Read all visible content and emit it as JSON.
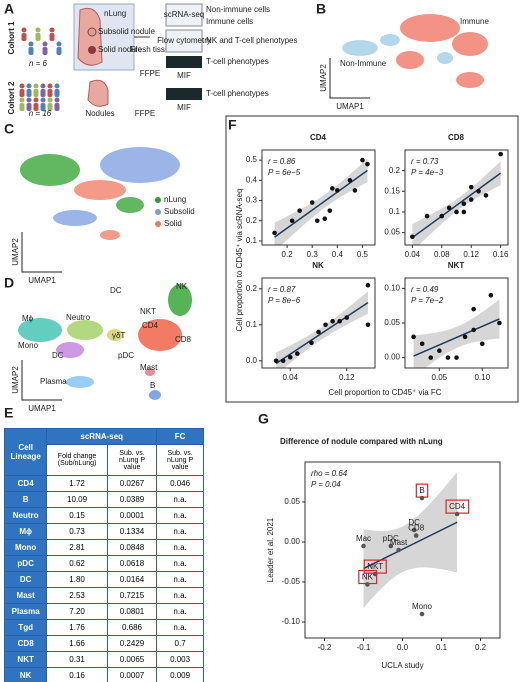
{
  "panels": {
    "A": {
      "letter": "A",
      "cohort1": "Cohort 1",
      "n1": "n = 6",
      "nlung": "nLung",
      "subsolid": "Subsolid nodule",
      "solid": "Solid nodule",
      "fresh": "Fresh tissue",
      "scrna": "scRNA-seq",
      "flow": "Flow cytometry",
      "nonimmune": "Non-immune cells",
      "immune": "Immune cells",
      "nkt_pheno": "NK and T-cell phenotypes",
      "ffpe1": "FFPE",
      "mif1": "MIF",
      "tcell1": "T-cell phenotypes",
      "cohort2": "Cohort 2",
      "n2": "n = 16",
      "nodules": "Nodules",
      "ffpe2": "FFPE",
      "mif2": "MIF",
      "tcell2": "T-cell phenotypes"
    },
    "B": {
      "letter": "B",
      "umap2": "UMAP2",
      "umap1": "UMAP1",
      "immune": "Immune",
      "nonimmune": "Non-Immune"
    },
    "C": {
      "letter": "C",
      "umap2": "UMAP2",
      "umap1": "UMAP1",
      "legend": [
        {
          "name": "nLung",
          "color": "#2ca02c"
        },
        {
          "name": "Subsolid",
          "color": "#7b9be0"
        },
        {
          "name": "Solid",
          "color": "#f07860"
        }
      ]
    },
    "D": {
      "letter": "D",
      "umap2": "UMAP2",
      "umap1": "UMAP1",
      "labels": [
        "DC",
        "NK",
        "Mϕ",
        "Neutro",
        "NKT",
        "CD4",
        "CD8",
        "γδT",
        "Mono",
        "DC",
        "pDC",
        "Mast",
        "Plasma",
        "B"
      ]
    },
    "E": {
      "letter": "E"
    },
    "F": {
      "letter": "F",
      "ylabel": "Cell proportion to CD45⁺ via scRNA-seq",
      "xlabel": "Cell proportion to CD45⁺ via FC"
    },
    "G": {
      "letter": "G"
    }
  },
  "table": {
    "header": [
      "Cell Lineage",
      "scRNA-seq",
      "FC"
    ],
    "subheader": [
      "Fold change (Sub/nLung)",
      "Sub. vs. nLung P value",
      "Sub. vs. nLung P value"
    ],
    "rows": [
      [
        "CD4",
        "1.72",
        "0.0267",
        "0.046"
      ],
      [
        "B",
        "10.09",
        "0.0389",
        "n.a."
      ],
      [
        "Neutro",
        "0.15",
        "0.0001",
        "n.a."
      ],
      [
        "Mϕ",
        "0.73",
        "0.1334",
        "n.a."
      ],
      [
        "Mono",
        "2.81",
        "0.0848",
        "n.a."
      ],
      [
        "pDC",
        "0.62",
        "0.0618",
        "n.a."
      ],
      [
        "DC",
        "1.80",
        "0.0164",
        "n.a."
      ],
      [
        "Mast",
        "2.53",
        "0.7215",
        "n.a."
      ],
      [
        "Plasma",
        "7.20",
        "0.0801",
        "n.a."
      ],
      [
        "Tgd",
        "1.76",
        "0.686",
        "n.a."
      ],
      [
        "CD8",
        "1.66",
        "0.2429",
        "0.7"
      ],
      [
        "NKT",
        "0.31",
        "0.0065",
        "0.003"
      ],
      [
        "NK",
        "0.16",
        "0.0007",
        "0.009"
      ]
    ]
  },
  "chart_data": [
    {
      "type": "scatter",
      "title": "CD4",
      "annotations": [
        "r = 0.86",
        "P = 6e−5"
      ],
      "fit": true,
      "color": "#111111",
      "xlim": [
        0.1,
        0.55
      ],
      "ylim": [
        0.08,
        0.55
      ],
      "xticks": [
        0.2,
        0.3,
        0.4,
        0.5
      ],
      "yticks": [
        0.1,
        0.2,
        0.3,
        0.4,
        0.5
      ],
      "x": [
        0.15,
        0.22,
        0.25,
        0.3,
        0.32,
        0.35,
        0.37,
        0.38,
        0.4,
        0.45,
        0.47,
        0.5,
        0.52
      ],
      "y": [
        0.14,
        0.2,
        0.25,
        0.29,
        0.2,
        0.21,
        0.25,
        0.36,
        0.35,
        0.4,
        0.35,
        0.5,
        0.48
      ]
    },
    {
      "type": "scatter",
      "title": "CD8",
      "annotations": [
        "r = 0.73",
        "P = 4e−3"
      ],
      "fit": true,
      "color": "#111111",
      "xlim": [
        0.03,
        0.17
      ],
      "ylim": [
        0.02,
        0.25
      ],
      "xticks": [
        0.04,
        0.08,
        0.12,
        0.16
      ],
      "yticks": [
        0.05,
        0.1,
        0.15,
        0.2
      ],
      "x": [
        0.04,
        0.06,
        0.08,
        0.09,
        0.1,
        0.11,
        0.11,
        0.12,
        0.12,
        0.13,
        0.14,
        0.16
      ],
      "y": [
        0.04,
        0.09,
        0.09,
        0.11,
        0.1,
        0.12,
        0.1,
        0.13,
        0.16,
        0.15,
        0.14,
        0.24
      ]
    },
    {
      "type": "scatter",
      "title": "NK",
      "annotations": [
        "r = 0.87",
        "P = 8e−6"
      ],
      "fit": true,
      "color": "#111111",
      "xlim": [
        0.0,
        0.16
      ],
      "ylim": [
        -0.02,
        0.23
      ],
      "xticks": [
        0.04,
        0.12
      ],
      "yticks": [
        {
          "value": 0,
          "label": "0.0"
        },
        0.1,
        0.2
      ],
      "x": [
        0.02,
        0.03,
        0.04,
        0.05,
        0.07,
        0.08,
        0.09,
        0.1,
        0.11,
        0.12,
        0.15,
        0.15
      ],
      "y": [
        0.0,
        0.0,
        0.01,
        0.02,
        0.05,
        0.08,
        0.1,
        0.11,
        0.11,
        0.12,
        0.21,
        0.1
      ]
    },
    {
      "type": "scatter",
      "title": "NKT",
      "annotations": [
        "r = 0.49",
        "P = 7e−2"
      ],
      "fit": true,
      "color": "#111111",
      "xlim": [
        0.01,
        0.13
      ],
      "ylim": [
        -0.015,
        0.115
      ],
      "xticks": [
        0.05,
        {
          "value": 0.1,
          "label": "0.10"
        }
      ],
      "yticks": [
        {
          "value": 0,
          "label": "0.00"
        },
        0.05,
        {
          "value": 0.1,
          "label": "0.10"
        }
      ],
      "x": [
        0.02,
        0.03,
        0.04,
        0.05,
        0.06,
        0.07,
        0.08,
        0.09,
        0.09,
        0.1,
        0.11,
        0.12
      ],
      "y": [
        0.03,
        0.02,
        0.0,
        0.01,
        0.0,
        0.0,
        0.03,
        0.04,
        0.07,
        0.02,
        0.09,
        0.05
      ]
    },
    {
      "type": "scatter",
      "title": "Difference of nodule compared with nLung",
      "xlabel": "UCLA study",
      "ylabel": "Leader et al. 2021",
      "annotations": [
        "rho = 0.64",
        "P = 0.04"
      ],
      "fit": true,
      "color": "#555555",
      "xlim": [
        -0.25,
        0.25
      ],
      "ylim": [
        -0.12,
        0.1
      ],
      "xticks": [
        -0.2,
        -0.1,
        {
          "value": 0,
          "label": "0.0"
        },
        0.1,
        0.2
      ],
      "yticks": [
        {
          "value": -0.1,
          "label": "-0.10"
        },
        -0.05,
        {
          "value": 0,
          "label": "0.00"
        },
        0.05
      ],
      "labels": [
        "CD4",
        "B",
        "DC",
        "CD8",
        "pDC",
        "Mast",
        "Mac",
        "NKT",
        "NK",
        "Mono"
      ],
      "boxed": [
        true,
        true,
        false,
        false,
        false,
        false,
        false,
        true,
        true,
        false
      ],
      "x": [
        0.14,
        0.05,
        0.03,
        0.035,
        -0.03,
        -0.01,
        -0.1,
        -0.07,
        -0.09,
        0.05
      ],
      "y": [
        0.035,
        0.055,
        0.015,
        0.008,
        -0.005,
        -0.01,
        -0.005,
        -0.04,
        -0.053,
        -0.09
      ]
    }
  ]
}
